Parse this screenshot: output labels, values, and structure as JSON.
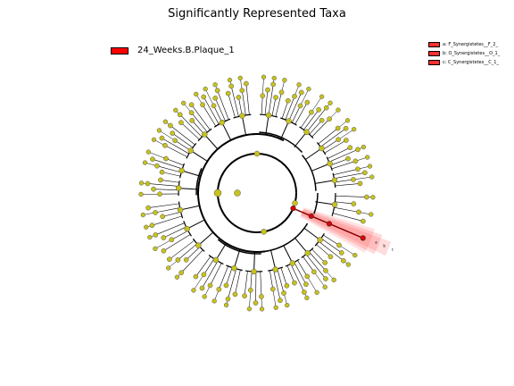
{
  "figure": {
    "title": "Significantly Represented Taxa",
    "node_color": "#c7c21c",
    "highlight_color": "#ff2a2a",
    "edge_color": "#000000"
  },
  "main_legend": {
    "label": "24_Weeks.B.Plaque_1",
    "color": "#ff0000"
  },
  "clade_legend": [
    {
      "text": "a: F_Synergistetes__F_2_",
      "color": "#ff3030"
    },
    {
      "text": "b: O_Synergistetes__O_1_",
      "color": "#ff3030"
    },
    {
      "text": "c: C_Synergistetes__C_1_",
      "color": "#ff3030"
    }
  ],
  "highlighted_clades": [
    {
      "letter": "a"
    },
    {
      "letter": "b"
    },
    {
      "letter": "c"
    }
  ]
}
